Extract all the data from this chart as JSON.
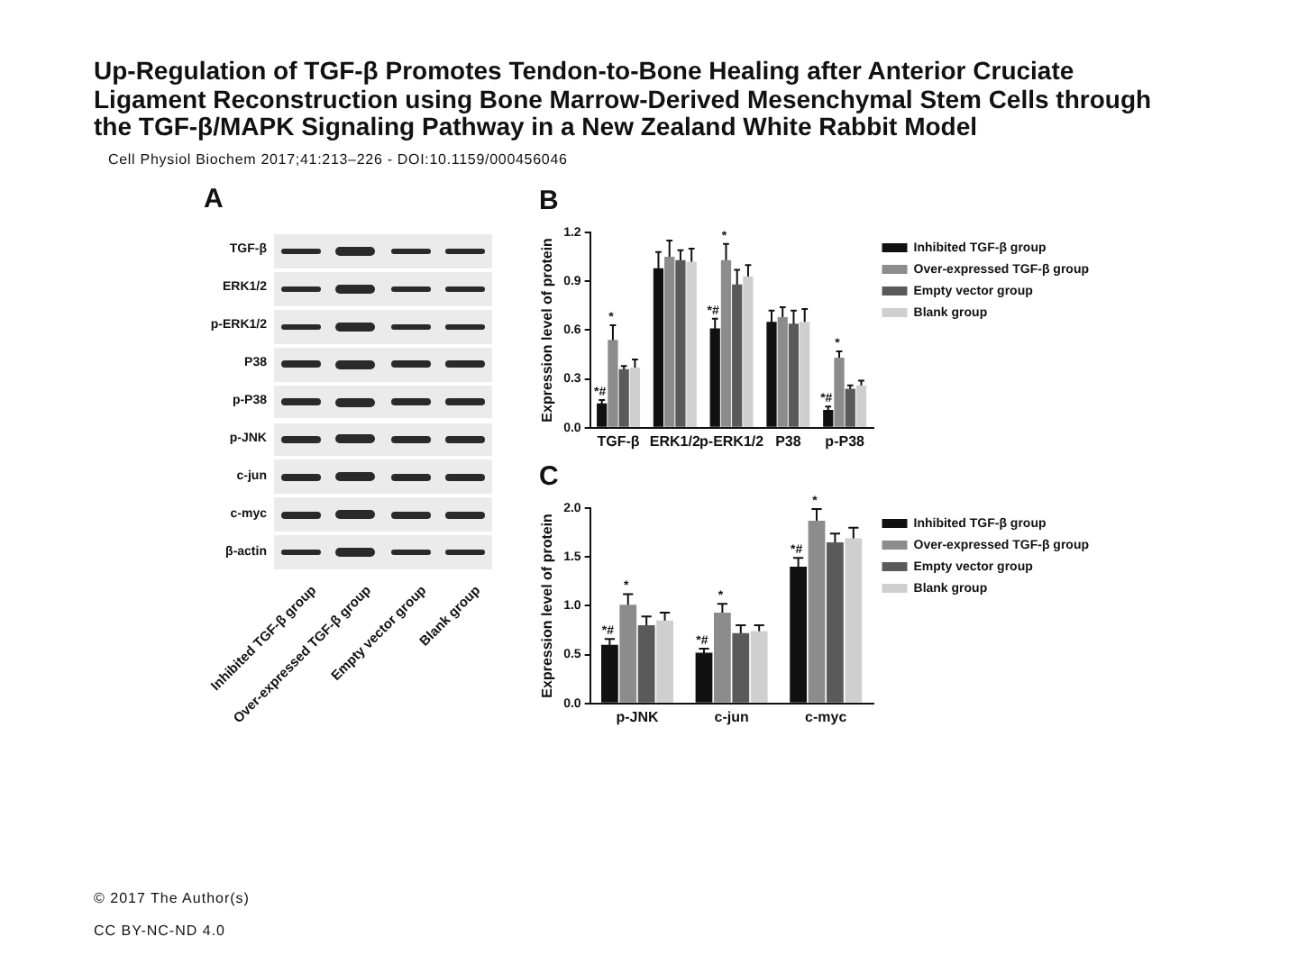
{
  "chart_data": [
    {
      "type": "other",
      "title": "Up-Regulation of TGF-β Promotes Tendon-to-Bone Healing after Anterior Cruciate Ligament Reconstruction using Bone Marrow-Derived Mesenchymal Stem Cells through the TGF-β/MAPK Signaling Pathway in a New Zealand White Rabbit Model",
      "subtitle": "Cell Physiol Biochem 2017;41:213–226 - DOI:10.1159/000456046",
      "annotations": [
        "© 2017 The Author(s)",
        "CC BY-NC-ND 4.0"
      ]
    },
    {
      "type": "other",
      "title": "A",
      "categories": [
        "Inhibited TGF-β group",
        "Over-expressed TGF-β group",
        "Empty vector group",
        "Blank group"
      ],
      "y_categories": [
        "TGF-β",
        "ERK1/2",
        "p-ERK1/2",
        "P38",
        "p-P38",
        "p-JNK",
        "c-jun",
        "c-myc",
        "β-actin"
      ]
    },
    {
      "type": "bar",
      "title": "B",
      "ylabel": "Expression level of protein",
      "categories": [
        "TGF-β",
        "ERK1/2",
        "p-ERK1/2",
        "P38",
        "p-P38"
      ],
      "series": [
        {
          "name": "Inhibited TGF-β group",
          "color": "#111111",
          "values": [
            0.15,
            0.98,
            0.61,
            0.65,
            0.11
          ],
          "errors": [
            0.02,
            0.1,
            0.06,
            0.07,
            0.02
          ],
          "value_labels": [
            "*#",
            null,
            "*#",
            null,
            "*#"
          ]
        },
        {
          "name": "Over-expressed TGF-β group",
          "color": "#8c8c8c",
          "values": [
            0.54,
            1.05,
            1.03,
            0.68,
            0.43
          ],
          "errors": [
            0.09,
            0.1,
            0.1,
            0.06,
            0.04
          ],
          "value_labels": [
            "*",
            null,
            "*",
            null,
            "*"
          ]
        },
        {
          "name": "Empty vector group",
          "color": "#5a5a5a",
          "values": [
            0.36,
            1.03,
            0.88,
            0.64,
            0.24
          ],
          "errors": [
            0.02,
            0.06,
            0.09,
            0.08,
            0.02
          ]
        },
        {
          "name": "Blank group",
          "color": "#cfcfcf",
          "values": [
            0.37,
            1.02,
            0.93,
            0.65,
            0.26
          ],
          "errors": [
            0.05,
            0.08,
            0.07,
            0.08,
            0.03
          ]
        }
      ],
      "ylim": [
        0,
        1.2
      ],
      "yticks": [
        {
          "value": 0,
          "label": "0.0"
        },
        0.3,
        0.6,
        0.9,
        1.2
      ],
      "legend": "right"
    },
    {
      "type": "bar",
      "title": "C",
      "ylabel": "Expression level of protein",
      "categories": [
        "p-JNK",
        "c-jun",
        "c-myc"
      ],
      "series": [
        {
          "name": "Inhibited TGF-β group",
          "color": "#111111",
          "values": [
            0.6,
            0.52,
            1.4
          ],
          "errors": [
            0.06,
            0.04,
            0.09
          ],
          "value_labels": [
            "*#",
            "*#",
            "*#"
          ]
        },
        {
          "name": "Over-expressed TGF-β group",
          "color": "#8c8c8c",
          "values": [
            1.01,
            0.93,
            1.87
          ],
          "errors": [
            0.11,
            0.09,
            0.12
          ],
          "value_labels": [
            "*",
            "*",
            "*"
          ]
        },
        {
          "name": "Empty vector group",
          "color": "#5a5a5a",
          "values": [
            0.8,
            0.72,
            1.65
          ],
          "errors": [
            0.09,
            0.08,
            0.09
          ]
        },
        {
          "name": "Blank group",
          "color": "#cfcfcf",
          "values": [
            0.85,
            0.74,
            1.69
          ],
          "errors": [
            0.08,
            0.06,
            0.11
          ]
        }
      ],
      "ylim": [
        0,
        2.0
      ],
      "yticks": [
        {
          "value": 0,
          "label": "0.0"
        },
        0.5,
        {
          "value": 1,
          "label": "1.0"
        },
        1.5,
        {
          "value": 2,
          "label": "2.0"
        }
      ],
      "legend": "right"
    }
  ]
}
